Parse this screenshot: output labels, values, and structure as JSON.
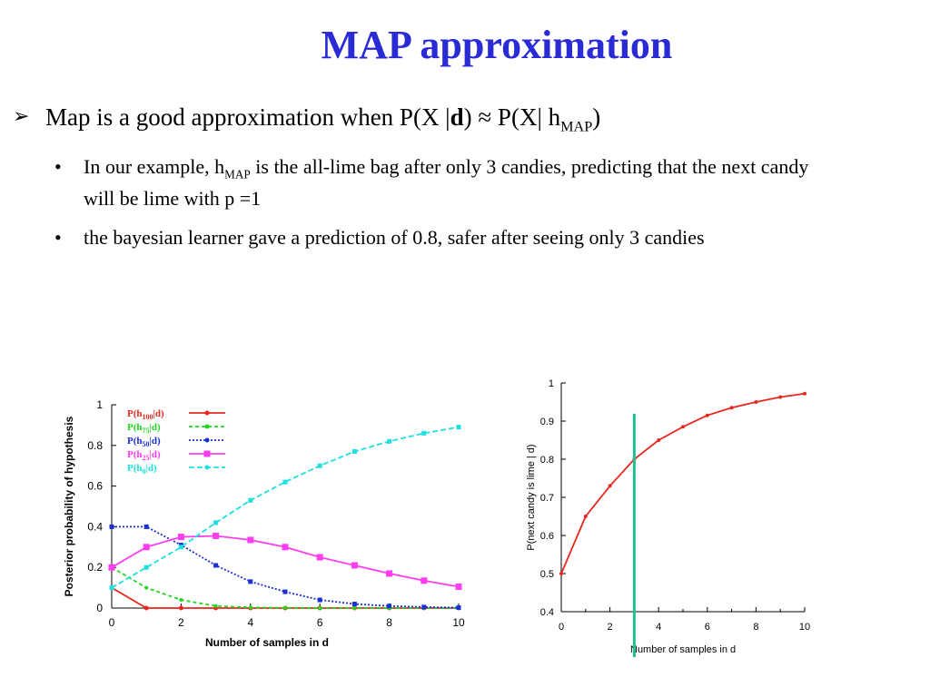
{
  "slide": {
    "title": "MAP approximation",
    "main_bullet": {
      "prefix": "Map is a good approximation when P(X |",
      "bold_d": "d",
      "middle": ") ≈ P(X| h",
      "sub": "MAP",
      "suffix": ")"
    },
    "sub_bullets": [
      {
        "pre": "In our example, h",
        "sub": "MAP",
        "post": " is the all-lime bag after only 3 candies, predicting that the next candy will be lime with  p =1"
      },
      {
        "pre": "the bayesian learner gave a prediction of 0.8, safer after seeing only 3 candies",
        "sub": "",
        "post": ""
      }
    ],
    "bullet_glyph": "•",
    "arrow_glyph": "➢"
  },
  "chart_data": [
    {
      "type": "line",
      "ylabel": "Posterior probability of hypothesis",
      "xlabel": "Number of samples in d",
      "xlim": [
        0,
        10
      ],
      "ylim": [
        0,
        1
      ],
      "x_ticks": [
        "0",
        "2",
        "4",
        "6",
        "8",
        "10"
      ],
      "y_ticks": [
        "0",
        "0.2",
        "0.4",
        "0.6",
        "0.8",
        "1"
      ],
      "x": [
        0,
        1,
        2,
        3,
        4,
        5,
        6,
        7,
        8,
        9,
        10
      ],
      "legend_position": "top-left",
      "series": [
        {
          "name": "P(h100|d)",
          "label_main": "P(h",
          "label_sub": "100",
          "label_end": "|d)",
          "color": "#e8281e",
          "dash": "",
          "marker": "circle",
          "values": [
            0.1,
            0,
            0,
            0,
            0,
            0,
            0,
            0,
            0,
            0,
            0
          ]
        },
        {
          "name": "P(h75|d)",
          "label_main": "P(h",
          "label_sub": "75",
          "label_end": "|d)",
          "color": "#1ed81e",
          "dash": "4,3",
          "marker": "x",
          "values": [
            0.2,
            0.1,
            0.04,
            0.01,
            0.003,
            0.001,
            0,
            0,
            0,
            0,
            0
          ]
        },
        {
          "name": "P(h50|d)",
          "label_main": "P(h",
          "label_sub": "50",
          "label_end": "|d)",
          "color": "#1b2fd4",
          "dash": "2,2",
          "marker": "square",
          "values": [
            0.4,
            0.4,
            0.31,
            0.21,
            0.13,
            0.08,
            0.04,
            0.02,
            0.01,
            0.005,
            0.002
          ]
        },
        {
          "name": "P(h25|d)",
          "label_main": "P(h",
          "label_sub": "25",
          "label_end": "|d)",
          "color": "#ff3cf0",
          "dash": "",
          "marker": "bigsquare",
          "values": [
            0.2,
            0.3,
            0.35,
            0.355,
            0.335,
            0.3,
            0.25,
            0.21,
            0.17,
            0.135,
            0.105
          ]
        },
        {
          "name": "P(h0|d)",
          "label_main": "P(h",
          "label_sub": "0",
          "label_end": "|d)",
          "color": "#1ee0e0",
          "dash": "6,3",
          "marker": "square",
          "values": [
            0.1,
            0.2,
            0.3,
            0.42,
            0.53,
            0.62,
            0.7,
            0.77,
            0.82,
            0.86,
            0.89
          ]
        }
      ]
    },
    {
      "type": "line",
      "ylabel": "P(next candy is lime | d)",
      "xlabel": "Number of samples in d",
      "xlim": [
        0,
        10
      ],
      "ylim": [
        0.4,
        1
      ],
      "x_ticks": [
        "0",
        "2",
        "4",
        "6",
        "8",
        "10"
      ],
      "x_ticks_minor": [
        "1",
        "3",
        "5",
        "7",
        "9"
      ],
      "y_ticks": [
        "0.4",
        "0.5",
        "0.6",
        "0.7",
        "0.8",
        "0.9",
        "1"
      ],
      "x": [
        0,
        1,
        2,
        3,
        4,
        5,
        6,
        7,
        8,
        9,
        10
      ],
      "series": [
        {
          "color": "#e8281e",
          "values": [
            0.5,
            0.65,
            0.73,
            0.8,
            0.85,
            0.885,
            0.915,
            0.935,
            0.95,
            0.963,
            0.972
          ]
        }
      ],
      "annotation": {
        "type": "vertical-line",
        "x": 3,
        "color": "#1fbf8f"
      }
    }
  ]
}
